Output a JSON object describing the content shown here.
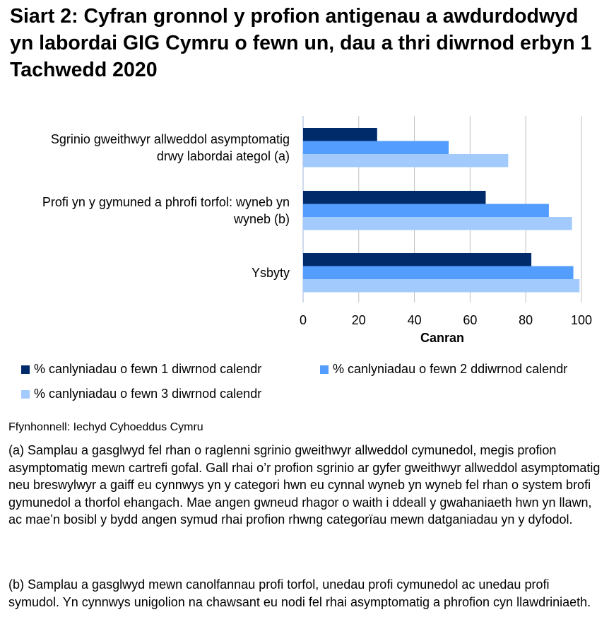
{
  "title": "Siart 2: Cyfran gronnol y profion antigenau a awdurdodwyd yn labordai GIG Cymru o fewn un, dau a thri diwrnod erbyn 1 Tachwedd 2020",
  "chart_data": {
    "type": "bar",
    "orientation": "horizontal",
    "title": "Siart 2: Cyfran gronnol y profion antigenau a awdurdodwyd yn labordai GIG Cymru o fewn un, dau a thri diwrnod erbyn 1 Tachwedd 2020",
    "categories": [
      "Sgrinio gweithwyr allweddol asymptomatig drwy labordai ategol (a)",
      "Profi yn y gymuned a phrofi torfol: wyneb yn wyneb (b)",
      "Ysbyty"
    ],
    "category_lines": [
      [
        "Sgrinio gweithwyr allweddol asymptomatig",
        "drwy labordai ategol (a)"
      ],
      [
        "Profi yn y gymuned a phrofi torfol: wyneb yn",
        "wyneb (b)"
      ],
      [
        "Ysbyty"
      ]
    ],
    "series": [
      {
        "name": "% canlyniadau o fewn 1 diwrnod calendr",
        "values": [
          26.6,
          65.6,
          82.0
        ],
        "color": "#002b6b"
      },
      {
        "name": "% canlyniadau o fewn 2 ddiwrnod calendr",
        "values": [
          52.3,
          88.3,
          97.1
        ],
        "color": "#529dfd"
      },
      {
        "name": "% canlyniadau o fewn 3 diwrnod calendr",
        "values": [
          73.7,
          96.6,
          99.3
        ],
        "color": "#a3cafc"
      }
    ],
    "xlabel": "Canran",
    "xlim": [
      0,
      100
    ],
    "xticks": [
      "0",
      "20",
      "40",
      "60",
      "80",
      "100"
    ],
    "grid": true,
    "legend_position": "bottom"
  },
  "source": "Ffynhonnell: Iechyd Cyhoeddus Cymru",
  "notes": [
    "(a) Samplau a gasglwyd fel rhan o raglenni sgrinio gweithwyr allweddol cymunedol, megis profion asymptomatig mewn cartrefi gofal. Gall rhai o’r profion sgrinio ar gyfer gweithwyr allweddol asymptomatig neu breswylwyr a gaiff eu cynnwys yn y categori hwn eu cynnal wyneb yn wyneb fel rhan o system brofi gymunedol a thorfol ehangach. Mae angen gwneud rhagor o waith i ddeall y gwahaniaeth hwn yn llawn, ac mae’n bosibl y bydd angen symud rhai profion rhwng categorïau mewn datganiadau yn y dyfodol.",
    "(b) Samplau a gasglwyd mewn canolfannau profi torfol, unedau profi cymunedol ac unedau profi symudol. Yn cynnwys unigolion na chawsant eu nodi fel rhai asymptomatig a phrofion cyn llawdriniaeth."
  ]
}
